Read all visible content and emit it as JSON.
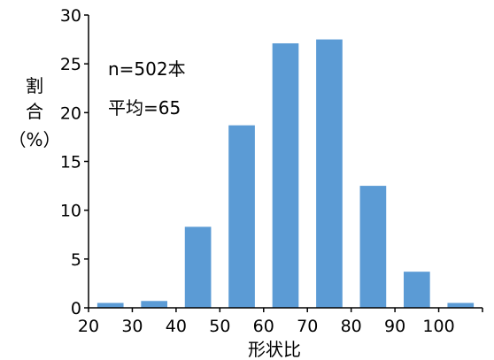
{
  "chart_data": {
    "type": "bar",
    "title": "",
    "xlabel": "形状比",
    "ylabel_lines": [
      "割",
      "合",
      "（%）"
    ],
    "x_ticks": [
      "20",
      "30",
      "40",
      "50",
      "60",
      "70",
      "80",
      "90",
      "100"
    ],
    "x_range": [
      20,
      110
    ],
    "y_ticks": [
      "0",
      "5",
      "10",
      "15",
      "20",
      "25",
      "30"
    ],
    "ylim": [
      0,
      30
    ],
    "bins": [
      {
        "from": 20,
        "to": 30,
        "value": 0.5
      },
      {
        "from": 30,
        "to": 40,
        "value": 0.7
      },
      {
        "from": 40,
        "to": 50,
        "value": 8.3
      },
      {
        "from": 50,
        "to": 60,
        "value": 18.7
      },
      {
        "from": 60,
        "to": 70,
        "value": 27.1
      },
      {
        "from": 70,
        "to": 80,
        "value": 27.5
      },
      {
        "from": 80,
        "to": 90,
        "value": 12.5
      },
      {
        "from": 90,
        "to": 100,
        "value": 3.7
      },
      {
        "from": 100,
        "to": 110,
        "value": 0.5
      }
    ],
    "bar_color": "#5b9bd5",
    "annotations": [
      "n=502本",
      "平均=65"
    ],
    "grid": false,
    "legend": "none"
  }
}
